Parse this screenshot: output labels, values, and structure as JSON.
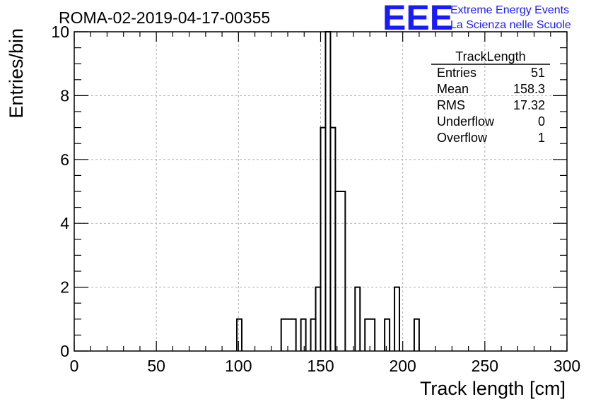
{
  "chart_data": {
    "type": "bar",
    "title": "ROMA-02-2019-04-17-00355",
    "xlabel": "Track length [cm]",
    "ylabel": "Entries/bin",
    "xlim": [
      0,
      300
    ],
    "ylim": [
      0,
      10
    ],
    "xticks": [
      0,
      50,
      100,
      150,
      200,
      250,
      300
    ],
    "yticks": [
      0,
      2,
      4,
      6,
      8,
      10
    ],
    "grid": true,
    "bin_width": 3,
    "bins": [
      {
        "x0": 99,
        "x1": 102,
        "count": 1
      },
      {
        "x0": 126,
        "x1": 135,
        "count": 1
      },
      {
        "x0": 138,
        "x1": 141,
        "count": 1
      },
      {
        "x0": 144,
        "x1": 147,
        "count": 1
      },
      {
        "x0": 147,
        "x1": 150,
        "count": 2
      },
      {
        "x0": 150,
        "x1": 153,
        "count": 7
      },
      {
        "x0": 153,
        "x1": 156,
        "count": 10
      },
      {
        "x0": 156,
        "x1": 159,
        "count": 7
      },
      {
        "x0": 159,
        "x1": 165,
        "count": 5
      },
      {
        "x0": 171,
        "x1": 174,
        "count": 2
      },
      {
        "x0": 177,
        "x1": 183,
        "count": 1
      },
      {
        "x0": 189,
        "x1": 192,
        "count": 1
      },
      {
        "x0": 195,
        "x1": 198,
        "count": 2
      },
      {
        "x0": 207,
        "x1": 210,
        "count": 1
      }
    ],
    "stats_box": {
      "name": "TrackLength",
      "rows": [
        {
          "label": "Entries",
          "value": "51"
        },
        {
          "label": "Mean",
          "value": "158.3"
        },
        {
          "label": "RMS",
          "value": "17.32"
        },
        {
          "label": "Underflow",
          "value": "0"
        },
        {
          "label": "Overflow",
          "value": "1"
        }
      ]
    }
  },
  "logo": {
    "mark": "EEE",
    "line1": "Extreme Energy Events",
    "line2": "La Scienza nelle Scuole",
    "color": "#1a1aff"
  }
}
